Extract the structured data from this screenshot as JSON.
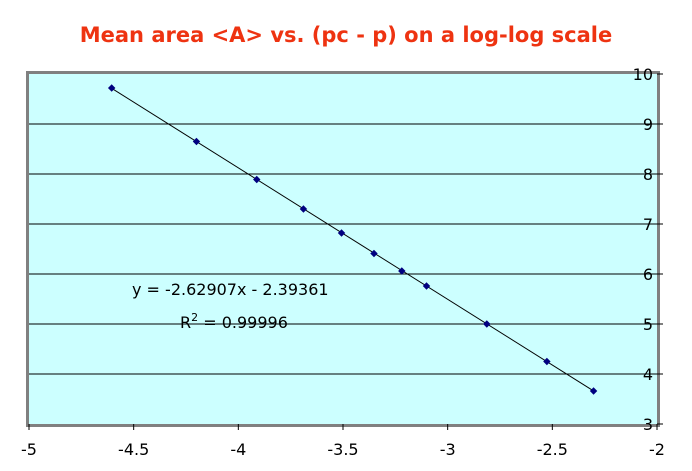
{
  "chart_data": {
    "type": "scatter",
    "title": "Mean area <A> vs. (pc - p) on a log-log scale",
    "xlabel": "",
    "ylabel": "",
    "xlim": [
      -5,
      -2
    ],
    "ylim": [
      3,
      10
    ],
    "x_ticks": [
      -5,
      -4.5,
      -4,
      -3.5,
      -3,
      -2.5,
      -2
    ],
    "x_tick_labels": [
      "-5",
      "-4.5",
      "-4",
      "-3.5",
      "-3",
      "-2.5",
      "-2"
    ],
    "y_ticks": [
      3,
      4,
      5,
      6,
      7,
      8,
      9,
      10
    ],
    "y_tick_labels": [
      "3",
      "4",
      "5",
      "6",
      "7",
      "8",
      "9",
      "10"
    ],
    "y_axis_side": "right",
    "grid": "horizontal",
    "legend": "none",
    "plot_background": "#ccffff",
    "frame_color": "#808080",
    "grid_color": "#000000",
    "marker_color": "#000080",
    "line_color": "#000000",
    "series": [
      {
        "x": [
          -4.605,
          -4.2,
          -3.912,
          -3.689,
          -3.507,
          -3.352,
          -3.219,
          -3.101,
          -2.813,
          -2.526,
          -2.303
        ],
        "y": [
          9.72,
          8.65,
          7.89,
          7.3,
          6.82,
          6.41,
          6.06,
          5.76,
          5.0,
          4.25,
          3.66
        ]
      }
    ],
    "trendline": {
      "type": "linear",
      "slope": -2.62907,
      "intercept": -2.39361,
      "x_range": [
        -4.605,
        -2.303
      ],
      "equation_text": "y = -2.62907x - 2.39361",
      "r2_prefix": "R",
      "r2_superscript": "2",
      "r2_suffix": " = 0.99996"
    }
  }
}
